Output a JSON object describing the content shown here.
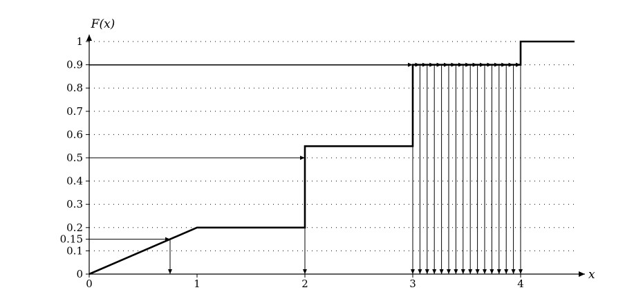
{
  "chart_data": {
    "type": "line",
    "title": "",
    "xlabel": "x",
    "ylabel": "F(x)",
    "xlim": [
      0,
      4.5
    ],
    "ylim": [
      0,
      1
    ],
    "grid": true,
    "x_ticks": [
      "0",
      "1",
      "2",
      "3",
      "4"
    ],
    "y_ticks": [
      "0",
      "0.1",
      "0.15",
      "0.2",
      "0.3",
      "0.4",
      "0.5",
      "0.6",
      "0.7",
      "0.8",
      "0.9",
      "1"
    ],
    "series": [
      {
        "points": [
          [
            0,
            0
          ],
          [
            1,
            0.2
          ],
          [
            2,
            0.2
          ],
          [
            2,
            0.55
          ],
          [
            3,
            0.55
          ],
          [
            3,
            0.9
          ],
          [
            4,
            0.9
          ],
          [
            4,
            1
          ],
          [
            4.5,
            1
          ]
        ]
      }
    ],
    "inverse_lookups": [
      {
        "u": 0.15,
        "x": 0.75
      },
      {
        "u": 0.5,
        "x": 2
      },
      {
        "u": 0.9,
        "x": [
          3,
          3.0667,
          3.1333,
          3.2,
          3.2667,
          3.3333,
          3.4,
          3.4667,
          3.5333,
          3.6,
          3.6667,
          3.7333,
          3.8,
          3.8667,
          3.9333,
          4
        ]
      }
    ]
  }
}
